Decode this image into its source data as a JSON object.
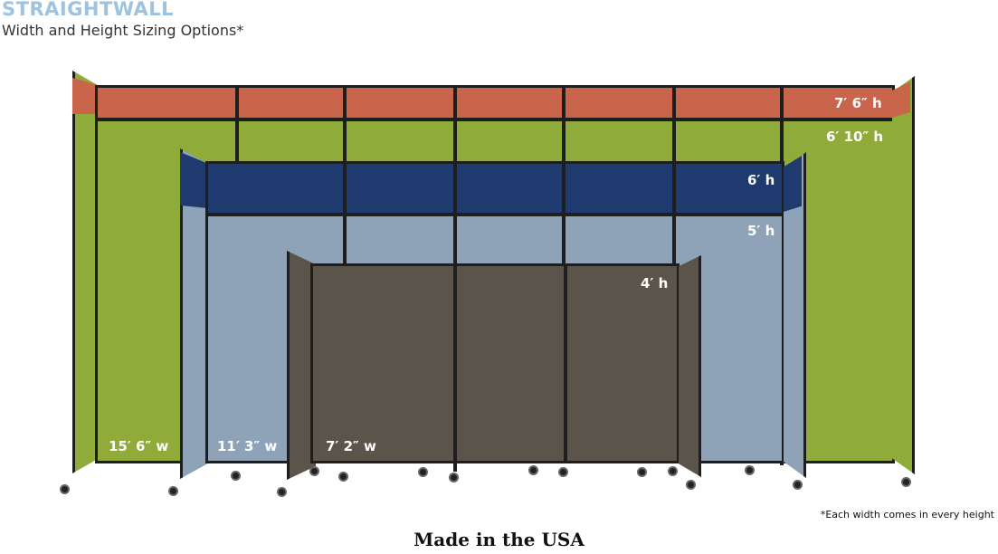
{
  "header": {
    "brand": "STRAIGHTWALL",
    "subtitle": "Width and Height Sizing Options*"
  },
  "colors": {
    "orange": "#c8654a",
    "green": "#8fac3a",
    "navy": "#1f3a6e",
    "light_blue": "#8ea3b8",
    "brown": "#5b544b",
    "frame": "#1e1e1e"
  },
  "heights": [
    "7′ 6″ h",
    "6′ 10″ h",
    "6′ h",
    "5′ h",
    "4′ h"
  ],
  "widths": [
    "15′ 6″ w",
    "11′ 3″ w",
    "7′ 2″ w"
  ],
  "footnote": "*Each width comes in every height",
  "footer": "Made in the USA"
}
